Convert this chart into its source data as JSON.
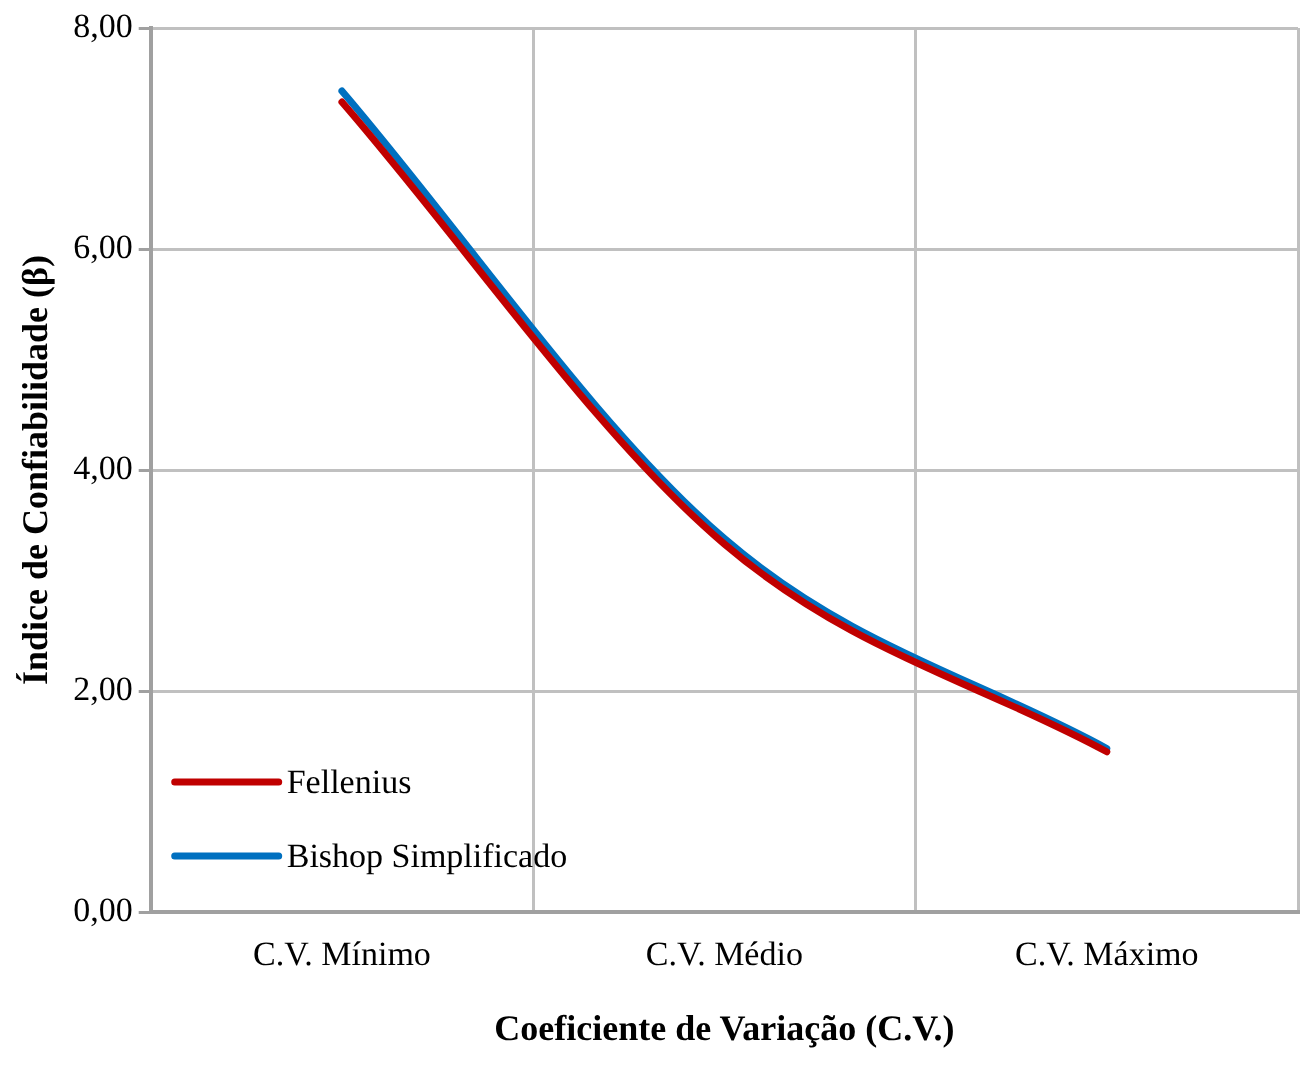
{
  "chart_data": {
    "type": "line",
    "xlabel": "Coeficiente de Variação (C.V.)",
    "ylabel": "Índice de Confiabilidade (β)",
    "categories": [
      "C.V. Mínimo",
      "C.V. Médio",
      "C.V. Máximo"
    ],
    "series": [
      {
        "name": "Fellenius",
        "color": "#c00000",
        "values": [
          7.33,
          3.33,
          1.45
        ]
      },
      {
        "name": "Bishop Simplificado",
        "color": "#0070c0",
        "values": [
          7.43,
          3.38,
          1.48
        ]
      }
    ],
    "ylim": [
      0,
      8
    ],
    "yticks": [
      {
        "value": 0,
        "label": "0,00"
      },
      {
        "value": 2,
        "label": "2,00"
      },
      {
        "value": 4,
        "label": "4,00"
      },
      {
        "value": 6,
        "label": "6,00"
      },
      {
        "value": 8,
        "label": "8,00"
      }
    ],
    "grid": true,
    "legend": "bottom left",
    "marker": "none",
    "line_style": "solid"
  }
}
